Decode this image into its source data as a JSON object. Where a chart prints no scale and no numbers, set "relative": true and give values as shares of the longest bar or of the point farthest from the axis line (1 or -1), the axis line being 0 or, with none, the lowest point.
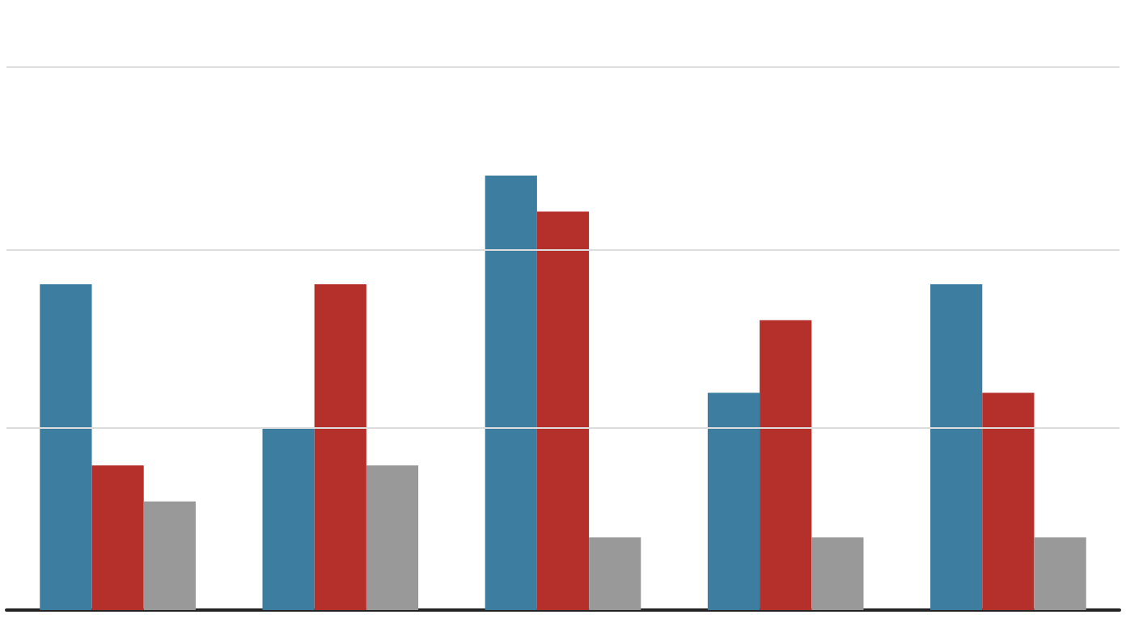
{
  "chart_data": {
    "type": "bar",
    "relative": true,
    "categories": [
      null,
      null,
      null,
      null,
      null
    ],
    "series": [
      {
        "color": "#3d7ea0",
        "values": [
          0.75,
          0.417,
          1,
          0.5,
          0.75
        ]
      },
      {
        "color": "#b5302a",
        "values": [
          0.333,
          0.75,
          0.917,
          0.667,
          0.5
        ]
      },
      {
        "color": "#999999",
        "values": [
          0.25,
          0.333,
          0.167,
          0.167,
          0.167
        ]
      }
    ],
    "ref_lines": [
      {
        "axis": "y",
        "value": 0.4167,
        "color": "#dddddd"
      },
      {
        "axis": "y",
        "value": 0.8333,
        "color": "#dddddd"
      },
      {
        "axis": "y",
        "value": 1.25,
        "color": "#dddddd"
      }
    ]
  }
}
